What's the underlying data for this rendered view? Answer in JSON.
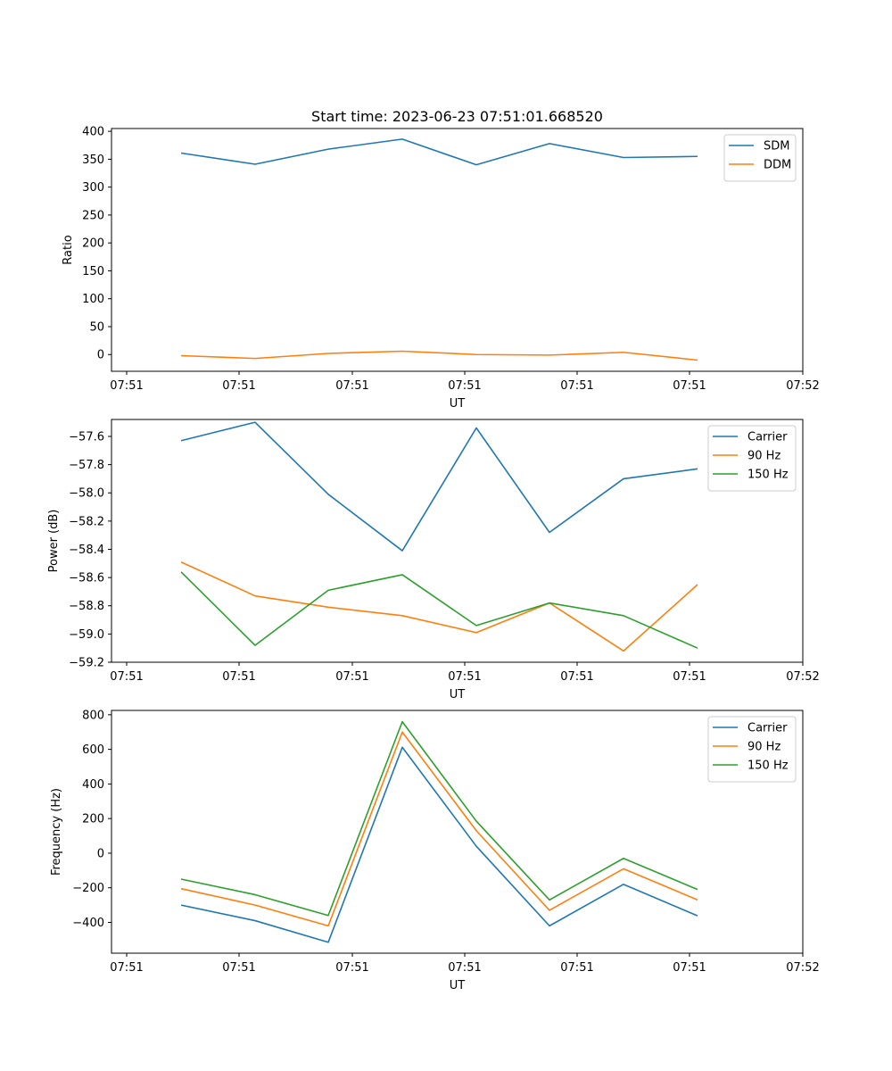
{
  "figure": {
    "title": "Start time: 2023-06-23 07:51:01.668520"
  },
  "colors": {
    "blue": "#1f77b4",
    "orange": "#ff7f0e",
    "green": "#2ca02c"
  },
  "chart_data": [
    {
      "type": "line",
      "title": "Start time: 2023-06-23 07:51:01.668520",
      "xlabel": "UT",
      "ylabel": "Ratio",
      "x_tick_labels": [
        "07:51",
        "07:51",
        "07:51",
        "07:51",
        "07:51",
        "07:51",
        "07:52"
      ],
      "y_ticks": [
        0,
        50,
        100,
        150,
        200,
        250,
        300,
        350,
        400
      ],
      "y_tick_labels": [
        "0",
        "50",
        "100",
        "150",
        "200",
        "250",
        "300",
        "350",
        "400"
      ],
      "ylim": [
        -30,
        405
      ],
      "grid": false,
      "legend_position": "top-right",
      "series": [
        {
          "name": "SDM",
          "color": "#1f77b4",
          "values": [
            361,
            341,
            368,
            386,
            340,
            378,
            353,
            355
          ]
        },
        {
          "name": "DDM",
          "color": "#ff7f0e",
          "values": [
            -2,
            -7,
            2,
            6,
            0,
            -1,
            4,
            -10
          ]
        }
      ]
    },
    {
      "type": "line",
      "xlabel": "UT",
      "ylabel": "Power (dB)",
      "x_tick_labels": [
        "07:51",
        "07:51",
        "07:51",
        "07:51",
        "07:51",
        "07:51",
        "07:52"
      ],
      "y_ticks": [
        -59.2,
        -59.0,
        -58.8,
        -58.6,
        -58.4,
        -58.2,
        -58.0,
        -57.8,
        -57.6
      ],
      "y_tick_labels": [
        "−59.2",
        "−59.0",
        "−58.8",
        "−58.6",
        "−58.4",
        "−58.2",
        "−58.0",
        "−57.8",
        "−57.6"
      ],
      "ylim": [
        -59.2,
        -57.48
      ],
      "grid": false,
      "legend_position": "top-right",
      "series": [
        {
          "name": "Carrier",
          "color": "#1f77b4",
          "values": [
            -57.63,
            -57.5,
            -58.01,
            -58.41,
            -57.54,
            -58.28,
            -57.9,
            -57.83
          ]
        },
        {
          "name": "90 Hz",
          "color": "#ff7f0e",
          "values": [
            -58.49,
            -58.73,
            -58.81,
            -58.87,
            -58.99,
            -58.78,
            -59.12,
            -58.65
          ]
        },
        {
          "name": "150 Hz",
          "color": "#2ca02c",
          "values": [
            -58.56,
            -59.08,
            -58.69,
            -58.58,
            -58.94,
            -58.78,
            -58.87,
            -59.1
          ]
        }
      ]
    },
    {
      "type": "line",
      "xlabel": "UT",
      "ylabel": "Frequency (Hz)",
      "x_tick_labels": [
        "07:51",
        "07:51",
        "07:51",
        "07:51",
        "07:51",
        "07:51",
        "07:52"
      ],
      "y_ticks": [
        -400,
        -200,
        0,
        200,
        400,
        600,
        800
      ],
      "y_tick_labels": [
        "−400",
        "−200",
        "0",
        "200",
        "400",
        "600",
        "800"
      ],
      "ylim": [
        -578,
        825
      ],
      "grid": false,
      "legend_position": "top-right",
      "series": [
        {
          "name": "Carrier",
          "color": "#1f77b4",
          "values": [
            -300,
            -390,
            -515,
            612,
            40,
            -420,
            -180,
            -362
          ]
        },
        {
          "name": "90 Hz",
          "color": "#ff7f0e",
          "values": [
            -205,
            -300,
            -420,
            700,
            130,
            -330,
            -90,
            -270
          ]
        },
        {
          "name": "150 Hz",
          "color": "#2ca02c",
          "values": [
            -150,
            -240,
            -360,
            760,
            185,
            -270,
            -30,
            -210
          ]
        }
      ]
    }
  ]
}
